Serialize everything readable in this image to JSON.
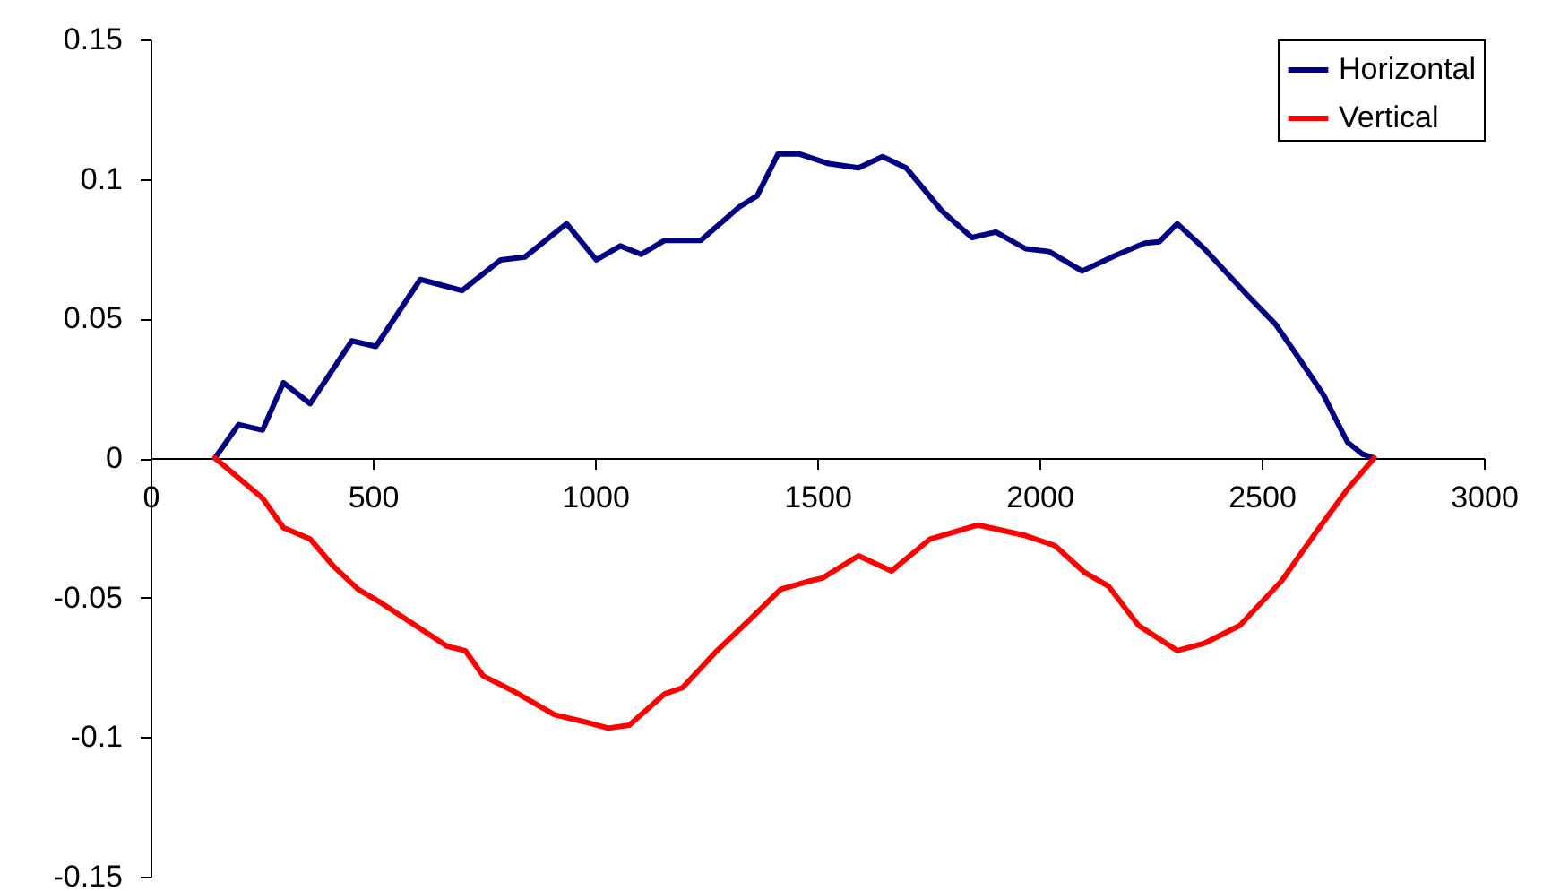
{
  "chart_data": {
    "type": "line",
    "xlim": [
      0,
      3000
    ],
    "xticks": [
      0,
      500,
      1000,
      1500,
      2000,
      2500,
      3000
    ],
    "ylim": [
      -0.15,
      0.15
    ],
    "yticks": [
      -0.15,
      -0.1,
      -0.05,
      0,
      0.05,
      0.1,
      0.15
    ],
    "grid": false,
    "legend": "top right",
    "marker": "none",
    "line_style": "solid",
    "series": [
      {
        "name": "Horizontal",
        "color": "#000080",
        "x": [
          145,
          198,
          252,
          299,
          359,
          453,
          507,
          607,
          701,
          788,
          842,
          936,
          1003,
          1057,
          1104,
          1157,
          1238,
          1325,
          1365,
          1412,
          1459,
          1526,
          1593,
          1647,
          1700,
          1781,
          1848,
          1902,
          1969,
          2022,
          2096,
          2170,
          2237,
          2270,
          2310,
          2371,
          2464,
          2531,
          2585,
          2639,
          2693,
          2726,
          2753
        ],
        "values": [
          0,
          0.012,
          0.01,
          0.027,
          0.0195,
          0.042,
          0.04,
          0.064,
          0.06,
          0.071,
          0.072,
          0.084,
          0.071,
          0.076,
          0.073,
          0.078,
          0.078,
          0.09,
          0.094,
          0.109,
          0.109,
          0.1055,
          0.104,
          0.108,
          0.104,
          0.0885,
          0.079,
          0.081,
          0.075,
          0.074,
          0.067,
          0.0725,
          0.077,
          0.0775,
          0.084,
          0.075,
          0.059,
          0.048,
          0.0355,
          0.0227,
          0.0057,
          0.0015,
          0
        ]
      },
      {
        "name": "Vertical",
        "color": "#ff0000",
        "x": [
          145,
          252,
          299,
          359,
          413,
          467,
          520,
          587,
          668,
          708,
          748,
          815,
          909,
          976,
          1030,
          1077,
          1157,
          1197,
          1271,
          1351,
          1418,
          1485,
          1512,
          1593,
          1667,
          1754,
          1862,
          1969,
          2035,
          2102,
          2156,
          2223,
          2310,
          2371,
          2451,
          2545,
          2625,
          2693,
          2753
        ],
        "values": [
          0,
          -0.0144,
          -0.025,
          -0.029,
          -0.039,
          -0.047,
          -0.052,
          -0.059,
          -0.0675,
          -0.069,
          -0.078,
          -0.0834,
          -0.092,
          -0.0945,
          -0.0968,
          -0.0957,
          -0.0845,
          -0.0823,
          -0.0696,
          -0.0575,
          -0.047,
          -0.044,
          -0.043,
          -0.035,
          -0.0405,
          -0.029,
          -0.024,
          -0.0278,
          -0.0314,
          -0.041,
          -0.046,
          -0.06,
          -0.069,
          -0.0664,
          -0.06,
          -0.044,
          -0.026,
          -0.0112,
          0
        ]
      }
    ]
  }
}
